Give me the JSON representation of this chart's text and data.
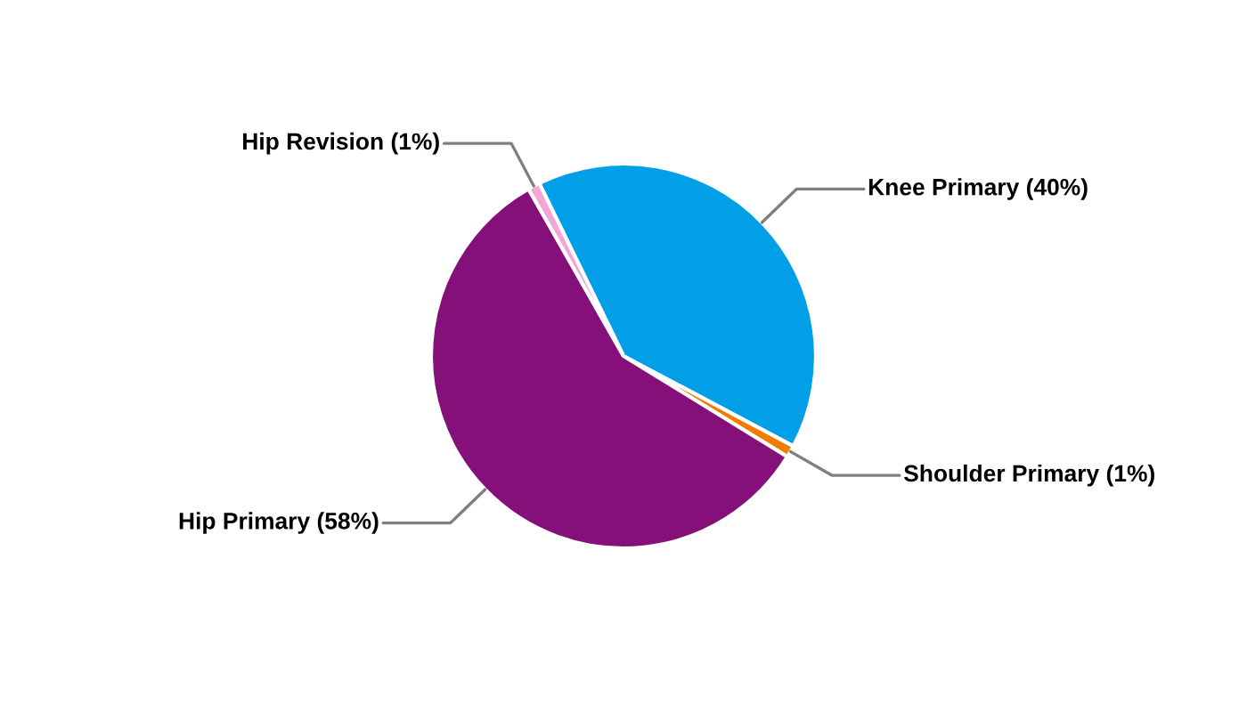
{
  "chart_data": {
    "type": "pie",
    "categories": [
      "Knee Primary (40%)",
      "Shoulder Primary (1%)",
      "Hip Primary (58%)",
      "Hip Revision (1%)"
    ],
    "values": [
      40,
      1,
      58,
      1
    ],
    "colors": [
      "#009fe8",
      "#f07c00",
      "#86107a",
      "#f2a6d8"
    ]
  }
}
